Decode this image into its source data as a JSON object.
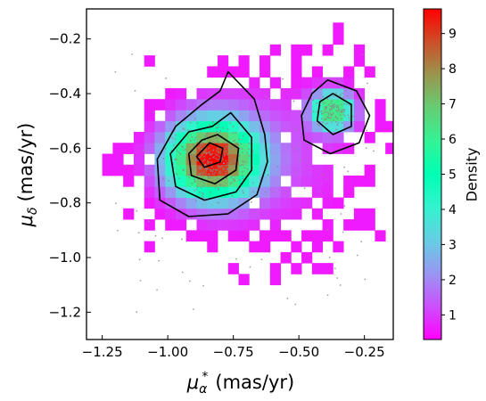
{
  "chart_data": {
    "type": "heatmap",
    "xlabel": "(mas/yr)",
    "xlabel_symbol": "μ",
    "xlabel_sub": "α",
    "xlabel_sup": "*",
    "ylabel": "(mas/yr)",
    "ylabel_symbol": "μ",
    "ylabel_sub": "δ",
    "colorbar_label": "Density",
    "xlim": [
      -1.31,
      -0.14
    ],
    "ylim": [
      -1.3,
      -0.09
    ],
    "x_ticks": [
      -1.25,
      -1.0,
      -0.75,
      -0.5,
      -0.25
    ],
    "x_tick_labels": [
      "−1.25",
      "−1.00",
      "−0.75",
      "−0.50",
      "−0.25"
    ],
    "y_ticks": [
      -1.2,
      -1.0,
      -0.8,
      -0.6,
      -0.4,
      -0.2
    ],
    "y_tick_labels": [
      "−1.2",
      "−1.0",
      "−0.8",
      "−0.6",
      "−0.4",
      "−0.2"
    ],
    "colorbar_range": [
      0.3,
      9.7
    ],
    "colorbar_ticks": [
      1,
      2,
      3,
      4,
      5,
      6,
      7,
      8,
      9
    ],
    "colorbar_tick_labels": [
      "1",
      "2",
      "3",
      "4",
      "5",
      "6",
      "7",
      "8",
      "9"
    ],
    "colormap": "rainbow",
    "grid": false,
    "bin_size": 0.04,
    "clusters": [
      {
        "center_x": -0.83,
        "center_y": -0.64,
        "peak_density": 9.2
      },
      {
        "center_x": -0.37,
        "center_y": -0.46,
        "peak_density": 6.5
      }
    ],
    "contours": [
      {
        "cluster": 1,
        "points": [
          [
            -0.77,
            -0.32
          ],
          [
            -0.67,
            -0.42
          ],
          [
            -0.63,
            -0.55
          ],
          [
            -0.62,
            -0.65
          ],
          [
            -0.66,
            -0.77
          ],
          [
            -0.77,
            -0.84
          ],
          [
            -0.92,
            -0.85
          ],
          [
            -1.03,
            -0.79
          ],
          [
            -1.04,
            -0.64
          ],
          [
            -0.97,
            -0.52
          ],
          [
            -0.87,
            -0.44
          ],
          [
            -0.8,
            -0.39
          ]
        ]
      },
      {
        "cluster": 1,
        "points": [
          [
            -0.76,
            -0.47
          ],
          [
            -0.68,
            -0.56
          ],
          [
            -0.68,
            -0.68
          ],
          [
            -0.74,
            -0.76
          ],
          [
            -0.86,
            -0.79
          ],
          [
            -0.97,
            -0.74
          ],
          [
            -0.99,
            -0.62
          ],
          [
            -0.92,
            -0.54
          ],
          [
            -0.83,
            -0.52
          ]
        ]
      },
      {
        "cluster": 1,
        "points": [
          [
            -0.81,
            -0.55
          ],
          [
            -0.73,
            -0.6
          ],
          [
            -0.74,
            -0.68
          ],
          [
            -0.82,
            -0.73
          ],
          [
            -0.91,
            -0.7
          ],
          [
            -0.92,
            -0.62
          ],
          [
            -0.87,
            -0.57
          ]
        ]
      },
      {
        "cluster": 1,
        "points": [
          [
            -0.84,
            -0.58
          ],
          [
            -0.79,
            -0.6
          ],
          [
            -0.8,
            -0.65
          ],
          [
            -0.86,
            -0.67
          ],
          [
            -0.89,
            -0.63
          ]
        ]
      },
      {
        "cluster": 2,
        "points": [
          [
            -0.39,
            -0.35
          ],
          [
            -0.28,
            -0.39
          ],
          [
            -0.23,
            -0.48
          ],
          [
            -0.27,
            -0.58
          ],
          [
            -0.38,
            -0.62
          ],
          [
            -0.48,
            -0.57
          ],
          [
            -0.49,
            -0.48
          ],
          [
            -0.45,
            -0.4
          ]
        ]
      },
      {
        "cluster": 2,
        "points": [
          [
            -0.37,
            -0.4
          ],
          [
            -0.3,
            -0.44
          ],
          [
            -0.3,
            -0.52
          ],
          [
            -0.37,
            -0.55
          ],
          [
            -0.43,
            -0.5
          ],
          [
            -0.42,
            -0.43
          ]
        ]
      }
    ]
  }
}
